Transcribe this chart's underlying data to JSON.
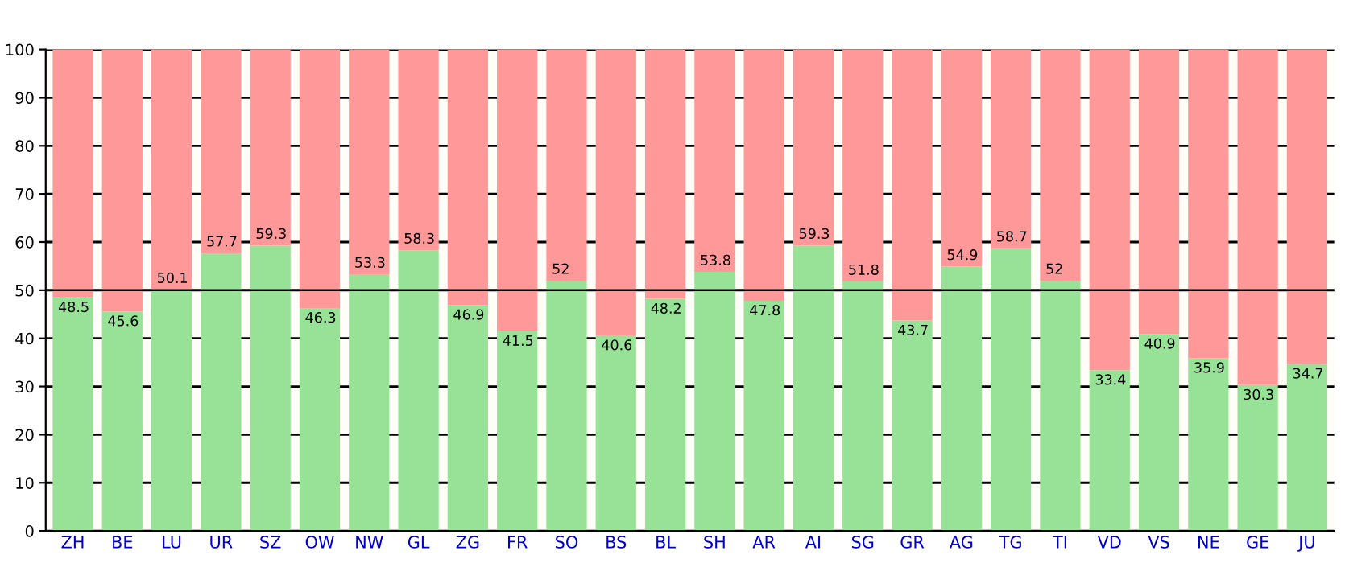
{
  "chart_data": {
    "type": "bar",
    "stacked": true,
    "categories": [
      "ZH",
      "BE",
      "LU",
      "UR",
      "SZ",
      "OW",
      "NW",
      "GL",
      "ZG",
      "FR",
      "SO",
      "BS",
      "BL",
      "SH",
      "AR",
      "AI",
      "SG",
      "GR",
      "AG",
      "TG",
      "TI",
      "VD",
      "VS",
      "NE",
      "GE",
      "JU"
    ],
    "series": [
      {
        "color": "#98e298",
        "values": [
          48.5,
          45.6,
          50.1,
          57.7,
          59.3,
          46.3,
          53.3,
          58.3,
          46.9,
          41.5,
          52,
          40.6,
          48.2,
          53.8,
          47.8,
          59.3,
          51.8,
          43.7,
          54.9,
          58.7,
          52,
          33.4,
          40.9,
          35.9,
          30.3,
          34.7
        ],
        "value_labels": [
          "48.5",
          "45.6",
          "50.1",
          "57.7",
          "59.3",
          "46.3",
          "53.3",
          "58.3",
          "46.9",
          "41.5",
          "52",
          "40.6",
          "48.2",
          "53.8",
          "47.8",
          "59.3",
          "51.8",
          "43.7",
          "54.9",
          "58.7",
          "52",
          "33.4",
          "40.9",
          "35.9",
          "30.3",
          "34.7"
        ]
      },
      {
        "color": "#ff9999",
        "values": [
          51.5,
          54.4,
          49.9,
          42.3,
          40.7,
          53.7,
          46.7,
          41.7,
          53.1,
          58.5,
          48,
          59.4,
          51.8,
          46.2,
          52.2,
          40.7,
          48.2,
          56.3,
          45.1,
          41.3,
          48,
          66.6,
          59.1,
          64.1,
          69.7,
          65.3
        ]
      }
    ],
    "ylim": [
      0,
      100
    ],
    "yticks": [
      0,
      10,
      20,
      30,
      40,
      50,
      60,
      70,
      80,
      90,
      100
    ],
    "grid": "y",
    "ref_lines": [
      {
        "axis": "y",
        "value": 50,
        "color": "#000000"
      }
    ]
  }
}
